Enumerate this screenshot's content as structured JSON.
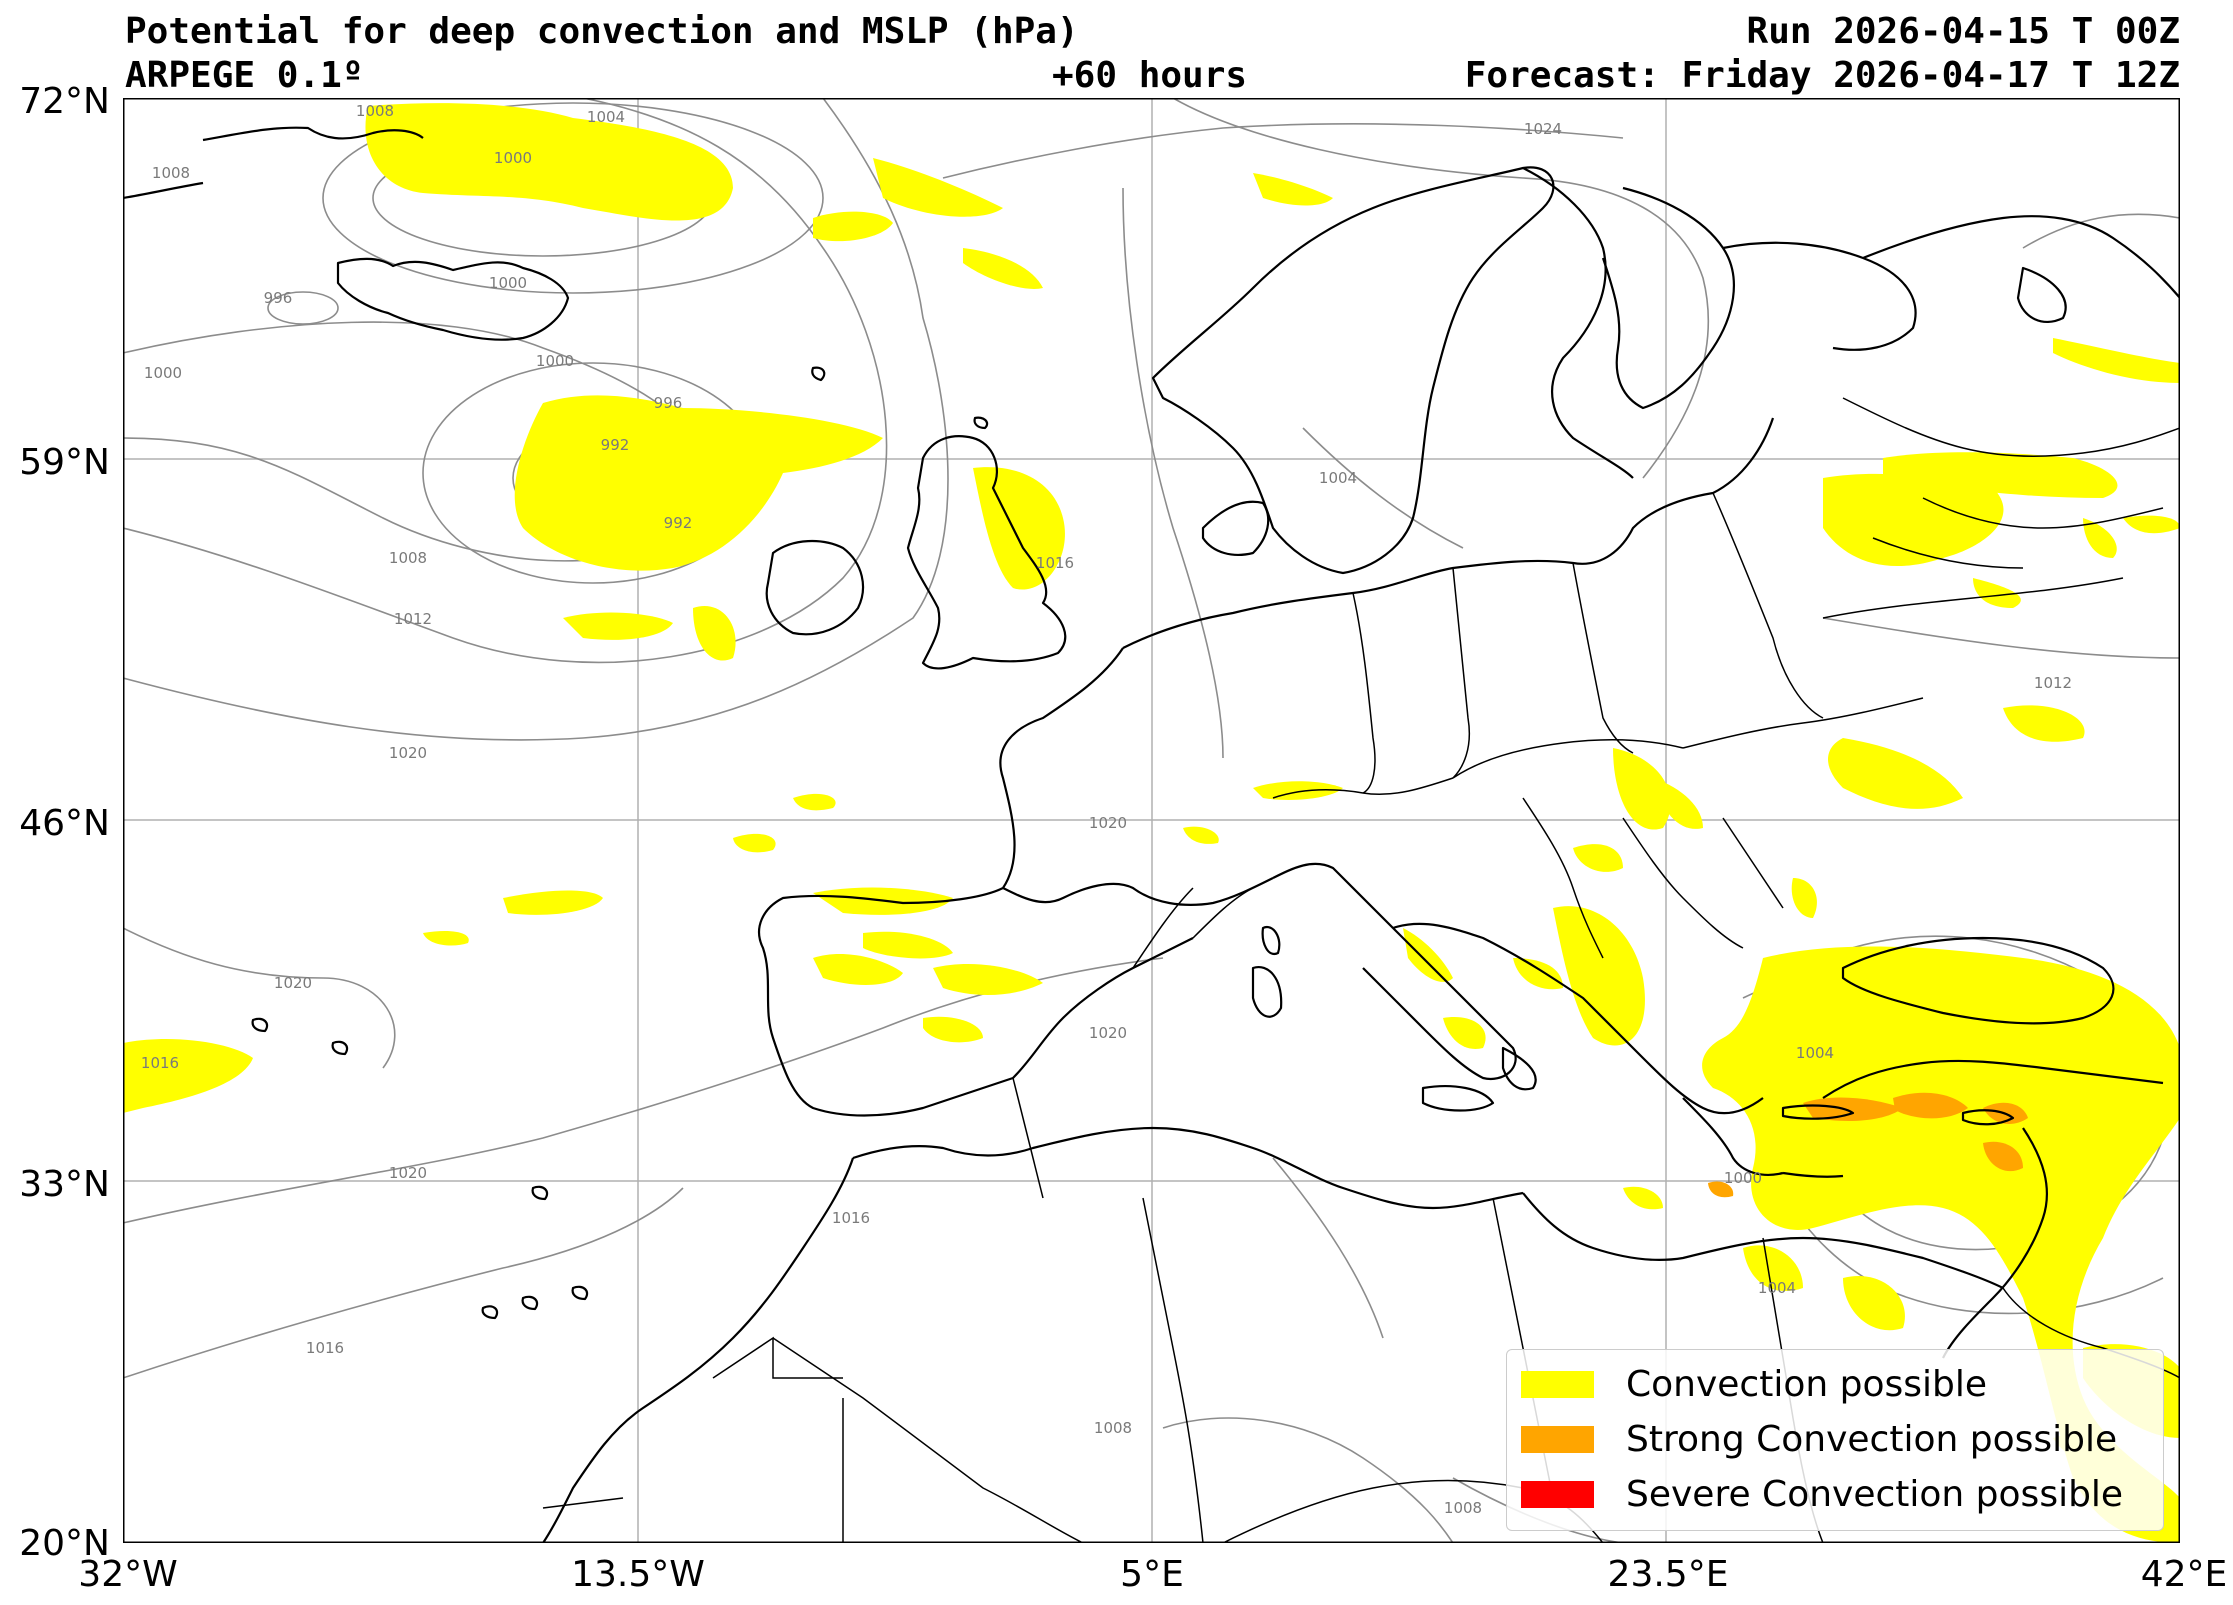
{
  "header": {
    "title": "Potential for deep convection and MSLP (hPa)",
    "model": "ARPEGE 0.1º",
    "lead_time": "+60 hours",
    "run": "Run 2026-04-15 T 00Z",
    "forecast": "Forecast: Friday 2026-04-17 T 12Z"
  },
  "axes": {
    "lat_ticks": [
      "72°N",
      "59°N",
      "46°N",
      "33°N",
      "20°N"
    ],
    "lon_ticks": [
      "32°W",
      "13.5°W",
      "5°E",
      "23.5°E",
      "42°E"
    ]
  },
  "isobar_labels": [
    "1008",
    "1004",
    "1000",
    "1008",
    "996",
    "1000",
    "1000",
    "1000",
    "996",
    "992",
    "992",
    "1008",
    "1012",
    "1016",
    "1020",
    "1020",
    "1016",
    "1020",
    "1020",
    "1016",
    "1024",
    "1004",
    "1020",
    "1016",
    "1004",
    "1000",
    "1004",
    "1008",
    "1008",
    "1012"
  ],
  "legend": {
    "items": [
      {
        "label": "Convection possible",
        "color": "#ffff00"
      },
      {
        "label": "Strong Convection possible",
        "color": "#ffa500"
      },
      {
        "label": "Severe Convection possible",
        "color": "#ff0000"
      }
    ]
  },
  "colors": {
    "coast": "#000000",
    "isobar": "#8c8c8c",
    "grid": "#b0b0b0"
  }
}
